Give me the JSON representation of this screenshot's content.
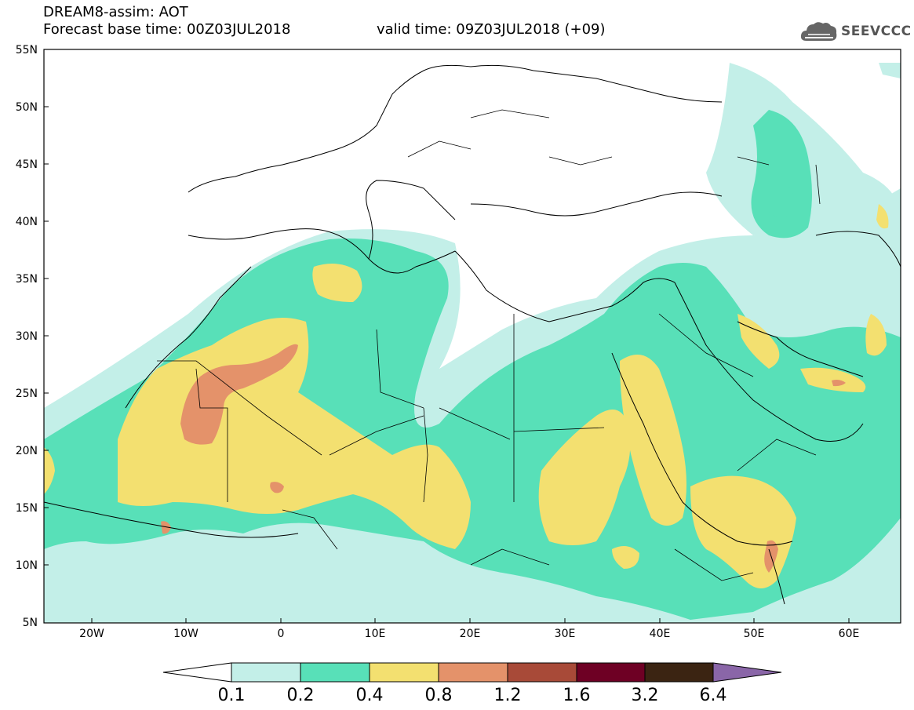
{
  "header": {
    "title": "DREAM8-assim: AOT",
    "base_time": "Forecast base time: 00Z03JUL2018",
    "valid_time": "valid time: 09Z03JUL2018 (+09)"
  },
  "logo": {
    "text": "SEEVCCC",
    "icon": "cloud-icon"
  },
  "map": {
    "lon_labels": [
      "20W",
      "10W",
      "0",
      "10E",
      "20E",
      "30E",
      "40E",
      "50E",
      "60E"
    ],
    "lat_labels": [
      "55N",
      "50N",
      "45N",
      "40N",
      "35N",
      "30N",
      "25N",
      "20N",
      "15N",
      "10N",
      "5N"
    ]
  },
  "legend": {
    "levels": [
      "0.1",
      "0.2",
      "0.4",
      "0.8",
      "1.2",
      "1.6",
      "3.2",
      "6.4"
    ],
    "colors": [
      "#c3efe8",
      "#58e0b8",
      "#f3e070",
      "#e4926a",
      "#a84a38",
      "#6e0024",
      "#3b2412",
      "#8a66a8"
    ]
  },
  "colors": {
    "c01": "#c3efe8",
    "c02": "#58e0b8",
    "c04": "#f3e070",
    "c08": "#e4926a",
    "c12": "#a84a38"
  }
}
